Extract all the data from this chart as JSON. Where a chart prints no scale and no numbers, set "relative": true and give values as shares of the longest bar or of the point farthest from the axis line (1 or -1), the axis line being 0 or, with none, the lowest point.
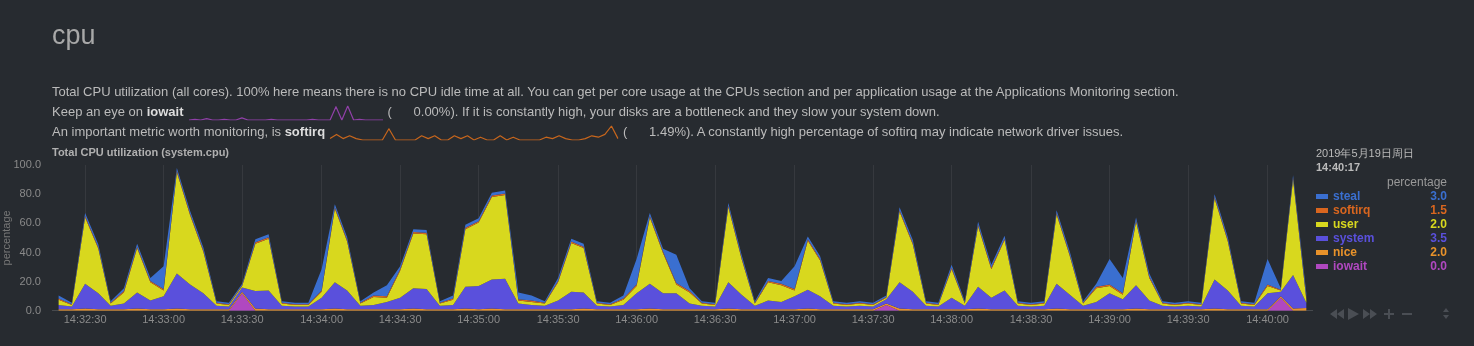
{
  "chart_data": [
    {
      "type": "area",
      "title": "Total CPU utilization (system.cpu)",
      "ylabel": "percentage",
      "legend_title": "percentage",
      "annotations": [
        "cpu",
        "Total CPU utilization (all cores). 100% here means there is no CPU idle time at all. You can get per core usage at the CPUs section and per application usage at the Applications Monitoring section.",
        "Keep an eye on iowait",
        "(      0.00%). If it is constantly high, your disks are a bottleneck and they slow your system down.",
        "An important metric worth monitoring, is softirq",
        "(      1.49%). A constantly high percentage of softirq may indicate network driver issues.",
        "2019年5月19日周日",
        "14:40:17",
        "3.0",
        "1.5",
        "2.0",
        "3.5",
        "2.0",
        "0.0"
      ],
      "x": [
        14.5389,
        14.5403,
        14.5417,
        14.5431,
        14.5444,
        14.5458,
        14.5472,
        14.5486,
        14.55,
        14.5514,
        14.5528,
        14.5542,
        14.5556,
        14.5569,
        14.5583,
        14.5597,
        14.5611,
        14.5625,
        14.5639,
        14.5653,
        14.5667,
        14.5681,
        14.5694,
        14.5708,
        14.5722,
        14.5736,
        14.575,
        14.5764,
        14.5778,
        14.5792,
        14.5806,
        14.5819,
        14.5833,
        14.5847,
        14.5861,
        14.5875,
        14.5889,
        14.5903,
        14.5917,
        14.5931,
        14.5944,
        14.5958,
        14.5972,
        14.5986,
        14.6,
        14.6014,
        14.6028,
        14.6042,
        14.6056,
        14.6069,
        14.6083,
        14.6097,
        14.6111,
        14.6125,
        14.6139,
        14.6153,
        14.6167,
        14.6181,
        14.6194,
        14.6208,
        14.6222,
        14.6236,
        14.625,
        14.6264,
        14.6278,
        14.6292,
        14.6306,
        14.6319,
        14.6333,
        14.6347,
        14.6361,
        14.6375,
        14.6389,
        14.6403,
        14.6417,
        14.6431,
        14.6444,
        14.6458,
        14.6472,
        14.6486,
        14.65,
        14.6514,
        14.6528,
        14.6542,
        14.6556,
        14.6569,
        14.6583,
        14.6597,
        14.6611,
        14.6625,
        14.6639,
        14.6653,
        14.6667,
        14.6681,
        14.6694,
        14.6708
      ],
      "xlim": [
        14.5382,
        14.6714
      ],
      "xticks": [
        {
          "value": 14.5417,
          "label": "14:32:30"
        },
        {
          "value": 14.55,
          "label": "14:33:00"
        },
        {
          "value": 14.5583,
          "label": "14:33:30"
        },
        {
          "value": 14.5667,
          "label": "14:34:00"
        },
        {
          "value": 14.575,
          "label": "14:34:30"
        },
        {
          "value": 14.5833,
          "label": "14:35:00"
        },
        {
          "value": 14.5917,
          "label": "14:35:30"
        },
        {
          "value": 14.6,
          "label": "14:36:00"
        },
        {
          "value": 14.6083,
          "label": "14:36:30"
        },
        {
          "value": 14.6167,
          "label": "14:37:00"
        },
        {
          "value": 14.625,
          "label": "14:37:30"
        },
        {
          "value": 14.6333,
          "label": "14:38:00"
        },
        {
          "value": 14.6417,
          "label": "14:38:30"
        },
        {
          "value": 14.65,
          "label": "14:39:00"
        },
        {
          "value": 14.6583,
          "label": "14:39:30"
        },
        {
          "value": 14.6667,
          "label": "14:40:00"
        }
      ],
      "ylim": [
        0,
        100
      ],
      "yticks": [
        {
          "value": 0,
          "label": "0.0"
        },
        {
          "value": 20,
          "label": "20.0"
        },
        {
          "value": 40,
          "label": "40.0"
        },
        {
          "value": 60,
          "label": "60.0"
        },
        {
          "value": 80,
          "label": "80.0"
        },
        {
          "value": 100,
          "label": "100.0"
        }
      ],
      "stacked": true,
      "grid": "x",
      "legend": "right",
      "series": [
        {
          "name": "iowait",
          "color": "#b048c0",
          "values": [
            0,
            0,
            0,
            0,
            0,
            0,
            0,
            0,
            0,
            0,
            0,
            0,
            0,
            0,
            12,
            0,
            0,
            0,
            0,
            0,
            0,
            0,
            0,
            0,
            0,
            0,
            0,
            0,
            0,
            0,
            0,
            0,
            0,
            0,
            0,
            0,
            0,
            0,
            0,
            0,
            0,
            0,
            0,
            0,
            0,
            0,
            0,
            0,
            0,
            0,
            0,
            0,
            0,
            0,
            0,
            0,
            0,
            0,
            0,
            0,
            0,
            0,
            0,
            4,
            0,
            0,
            0,
            0,
            0,
            0,
            0,
            0,
            0,
            0,
            0,
            0,
            0,
            0,
            0,
            0,
            0,
            0,
            0,
            0,
            0,
            0,
            0,
            0,
            0,
            0,
            0,
            0,
            0,
            9,
            0,
            0
          ]
        },
        {
          "name": "nice",
          "color": "#e8922a",
          "values": [
            1,
            1,
            1.5,
            1,
            1,
            1,
            1.5,
            1,
            1,
            1.5,
            1,
            1,
            1,
            1,
            1,
            1.5,
            1,
            1,
            1,
            1,
            1,
            1.5,
            1,
            1,
            1,
            1,
            1,
            1.5,
            1,
            1,
            1,
            1.5,
            1,
            1.5,
            1,
            1,
            1,
            1,
            1,
            1,
            1.5,
            1,
            1,
            1,
            1,
            1.5,
            1,
            1,
            1,
            1,
            1,
            1.5,
            1,
            1,
            1,
            1,
            1,
            1.5,
            1,
            1,
            1,
            1,
            1,
            1,
            1.5,
            1,
            1,
            1,
            1,
            1,
            1.5,
            1,
            1,
            1,
            1,
            1,
            1.5,
            1,
            1,
            1,
            1,
            1,
            1.5,
            1,
            1,
            1,
            1,
            1,
            1.5,
            1,
            1,
            1,
            1,
            1,
            1.5,
            2
          ]
        },
        {
          "name": "system",
          "color": "#5a50dc",
          "values": [
            3,
            2,
            17,
            11,
            2.5,
            4,
            11,
            6,
            9,
            24,
            17,
            11,
            2.5,
            2,
            3,
            12,
            13,
            2.5,
            2,
            2,
            8,
            18,
            13,
            2.5,
            3,
            5,
            8,
            14,
            14,
            2.5,
            3,
            15,
            16,
            20,
            21,
            4,
            3,
            2.5,
            6,
            12,
            11,
            2.5,
            2,
            3,
            11,
            17,
            11,
            11,
            4,
            2.5,
            2,
            18,
            10,
            2.5,
            6,
            5,
            9,
            13,
            9,
            2.5,
            2,
            2.5,
            2,
            3,
            18,
            12,
            2.5,
            2,
            8,
            2.5,
            15,
            8,
            13,
            2.5,
            2,
            2.5,
            17,
            10,
            2.5,
            5,
            11,
            7,
            16,
            6,
            2.5,
            2,
            2.5,
            2,
            20,
            13,
            2.5,
            2,
            11,
            3,
            23,
            3.5
          ]
        },
        {
          "name": "user",
          "color": "#d8d81e",
          "values": [
            3.5,
            1,
            45.5,
            30.5,
            1.5,
            7.5,
            30.5,
            12.5,
            4,
            69.5,
            47.5,
            28.5,
            1.5,
            1,
            1,
            32.5,
            35.5,
            1.5,
            1,
            1,
            4,
            50.5,
            33.5,
            1.5,
            5.5,
            3,
            18.5,
            37.5,
            37.5,
            1.5,
            3.5,
            39.5,
            43.5,
            56.5,
            57.5,
            2,
            2,
            1.5,
            12.5,
            33.5,
            30.5,
            1.5,
            1,
            3.5,
            5,
            45.5,
            27.5,
            6,
            7.5,
            1.5,
            1,
            51.5,
            24.5,
            1.5,
            12.5,
            11.5,
            4,
            33.5,
            24.5,
            1.5,
            1,
            1.5,
            1,
            1,
            48.5,
            32.5,
            1.5,
            1,
            19.5,
            1.5,
            41.5,
            19.5,
            34.5,
            1.5,
            1,
            1.5,
            47.5,
            26.5,
            1.5,
            9.5,
            5,
            3,
            43.5,
            15.5,
            1.5,
            1,
            1.5,
            1,
            55.5,
            33.5,
            1.5,
            1,
            5,
            1,
            65.5,
            2
          ]
        },
        {
          "name": "softirq",
          "color": "#d9661f",
          "values": [
            1,
            0.5,
            1,
            1,
            0.5,
            1,
            1,
            1,
            1,
            1,
            1,
            1,
            0.5,
            0.5,
            0.5,
            1,
            1,
            0.5,
            0.5,
            0.5,
            1,
            1,
            1,
            0.5,
            1,
            1,
            1,
            1,
            1,
            0.5,
            1,
            1,
            1,
            1,
            1,
            1,
            1,
            0.5,
            1,
            1,
            1,
            0.5,
            0.5,
            1,
            1,
            1,
            1,
            1,
            1,
            0.5,
            0.5,
            1,
            1,
            0.5,
            1,
            1,
            1,
            1,
            1,
            0.5,
            0.5,
            0.5,
            0.5,
            0.5,
            1,
            1,
            0.5,
            0.5,
            1,
            0.5,
            1,
            1,
            1,
            0.5,
            0.5,
            0.5,
            1,
            1,
            0.5,
            1,
            1,
            1,
            1,
            1,
            0.5,
            0.5,
            0.5,
            0.5,
            1,
            1,
            0.5,
            0.5,
            1,
            0.5,
            1,
            1.5
          ]
        },
        {
          "name": "steal",
          "color": "#3a6fd0",
          "values": [
            2,
            1,
            2,
            2,
            1,
            2,
            2,
            2,
            15.5,
            2,
            2,
            2,
            1,
            1,
            1,
            2,
            2,
            1,
            1,
            1,
            14.5,
            2,
            2,
            1,
            2,
            7.5,
            2,
            2,
            2,
            1,
            2,
            2,
            2,
            2,
            2,
            4.5,
            3.5,
            1,
            2,
            2,
            2,
            1,
            1,
            2,
            17.5,
            2,
            2,
            19.5,
            2,
            1,
            1,
            2,
            2,
            1,
            2,
            2,
            15.5,
            2,
            2,
            1,
            1,
            1,
            1,
            1,
            2,
            2,
            1,
            1,
            2,
            1,
            2,
            2,
            2,
            1,
            1,
            1,
            2,
            2,
            1,
            2,
            17.5,
            10.5,
            2,
            2,
            1,
            1,
            1,
            1,
            2,
            2,
            1,
            1,
            17.5,
            1,
            2,
            3
          ]
        }
      ]
    },
    {
      "type": "line",
      "relative": true,
      "categories": [
        null,
        null,
        null,
        null,
        null,
        null,
        null,
        null,
        null,
        null,
        null,
        null,
        null,
        null,
        null,
        null,
        null,
        null,
        null,
        null,
        null,
        null,
        null,
        null,
        null,
        null,
        null,
        null,
        null,
        null,
        null,
        null,
        null,
        null
      ],
      "series": [
        {
          "color": "#9040a8",
          "values": [
            0,
            0.05,
            0,
            0.1,
            0,
            0,
            0.05,
            0,
            0,
            0.15,
            0,
            0,
            0,
            0,
            0.05,
            0,
            0,
            0,
            0,
            0,
            0,
            0.05,
            0,
            0,
            0,
            0.95,
            0,
            1,
            0,
            0.05,
            0,
            0,
            0,
            0
          ]
        }
      ]
    },
    {
      "type": "line",
      "relative": true,
      "categories": [
        null,
        null,
        null,
        null,
        null,
        null,
        null,
        null,
        null,
        null,
        null,
        null,
        null,
        null,
        null,
        null,
        null,
        null,
        null,
        null,
        null,
        null,
        null,
        null,
        null,
        null,
        null,
        null,
        null,
        null,
        null,
        null,
        null,
        null,
        null,
        null,
        null,
        null,
        null,
        null,
        null,
        null,
        null,
        null,
        null
      ],
      "series": [
        {
          "color": "#c8661c",
          "values": [
            0.1,
            0.4,
            0.1,
            0.3,
            0.1,
            0,
            0,
            0,
            0,
            0.8,
            0,
            0,
            0,
            0,
            0.3,
            0.1,
            0.3,
            0,
            0,
            0.3,
            0.1,
            0.3,
            0,
            0.2,
            0,
            0,
            0.3,
            0,
            0.2,
            0,
            0,
            0,
            0,
            0.2,
            0.1,
            0.3,
            0.1,
            0,
            0,
            0.1,
            0.3,
            0.2,
            0.4,
            1,
            0.1
          ]
        }
      ]
    }
  ]
}
